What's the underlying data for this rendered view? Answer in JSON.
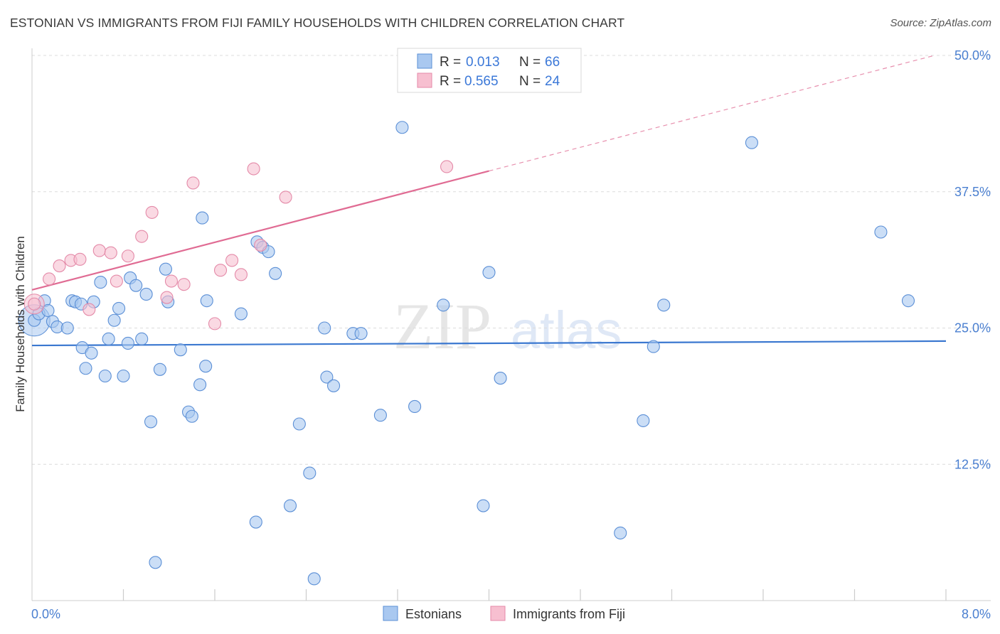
{
  "header": {
    "title": "ESTONIAN VS IMMIGRANTS FROM FIJI FAMILY HOUSEHOLDS WITH CHILDREN CORRELATION CHART",
    "source": "Source: ZipAtlas.com"
  },
  "watermark": {
    "zip": "ZIP",
    "atlas": "atlas"
  },
  "legend": {
    "r_label": "R =",
    "n_label": "N =",
    "rows": [
      {
        "r": "0.013",
        "n": "66"
      },
      {
        "r": "0.565",
        "n": "24"
      }
    ]
  },
  "colors": {
    "blue_fill": "#a9c8f0",
    "blue_stroke": "#5b8fd6",
    "blue_line": "#3b78d0",
    "pink_fill": "#f7bfd0",
    "pink_stroke": "#e48aa8",
    "pink_line": "#e06b93"
  },
  "chart_data": {
    "type": "scatter",
    "title": "ESTONIAN VS IMMIGRANTS FROM FIJI FAMILY HOUSEHOLDS WITH CHILDREN CORRELATION CHART",
    "xlabel": "",
    "ylabel": "Family Households with Children",
    "xlim": [
      0,
      8
    ],
    "ylim": [
      0,
      50
    ],
    "x_tick_labels": [
      "0.0%",
      "8.0%"
    ],
    "y_ticks": [
      12.5,
      25.0,
      37.5,
      50.0
    ],
    "y_tick_labels": [
      "12.5%",
      "25.0%",
      "37.5%",
      "50.0%"
    ],
    "series": [
      {
        "name": "Estonians",
        "r": 0.013,
        "n": 66,
        "trend": {
          "x": [
            0,
            8
          ],
          "y": [
            23.4,
            23.8
          ]
        },
        "points": [
          [
            0.02,
            25.7
          ],
          [
            0.06,
            26.3
          ],
          [
            0.11,
            27.5
          ],
          [
            0.14,
            26.6
          ],
          [
            0.18,
            25.6
          ],
          [
            0.22,
            25.1
          ],
          [
            0.31,
            25.0
          ],
          [
            0.35,
            27.5
          ],
          [
            0.38,
            27.4
          ],
          [
            0.43,
            27.2
          ],
          [
            0.44,
            23.2
          ],
          [
            0.47,
            21.3
          ],
          [
            0.52,
            22.7
          ],
          [
            0.54,
            27.4
          ],
          [
            0.6,
            29.2
          ],
          [
            0.64,
            20.6
          ],
          [
            0.67,
            24.0
          ],
          [
            0.72,
            25.7
          ],
          [
            0.76,
            26.8
          ],
          [
            0.8,
            20.6
          ],
          [
            0.84,
            23.6
          ],
          [
            0.86,
            29.6
          ],
          [
            0.91,
            28.9
          ],
          [
            0.96,
            24.0
          ],
          [
            1.0,
            28.1
          ],
          [
            1.04,
            16.4
          ],
          [
            1.08,
            3.5
          ],
          [
            1.12,
            21.2
          ],
          [
            1.17,
            30.4
          ],
          [
            1.19,
            27.4
          ],
          [
            1.3,
            23.0
          ],
          [
            1.37,
            17.3
          ],
          [
            1.4,
            16.9
          ],
          [
            1.47,
            19.8
          ],
          [
            1.49,
            35.1
          ],
          [
            1.52,
            21.5
          ],
          [
            1.53,
            27.5
          ],
          [
            1.83,
            26.3
          ],
          [
            1.96,
            7.2
          ],
          [
            1.97,
            32.9
          ],
          [
            2.02,
            32.4
          ],
          [
            2.07,
            32.0
          ],
          [
            2.13,
            30.0
          ],
          [
            2.26,
            8.7
          ],
          [
            2.34,
            16.2
          ],
          [
            2.43,
            11.7
          ],
          [
            2.47,
            2.0
          ],
          [
            2.56,
            25.0
          ],
          [
            2.58,
            20.5
          ],
          [
            2.64,
            19.7
          ],
          [
            2.81,
            24.5
          ],
          [
            2.88,
            24.5
          ],
          [
            3.05,
            17.0
          ],
          [
            3.24,
            43.4
          ],
          [
            3.35,
            17.8
          ],
          [
            3.6,
            27.1
          ],
          [
            3.95,
            8.7
          ],
          [
            4.0,
            30.1
          ],
          [
            4.1,
            20.4
          ],
          [
            5.15,
            6.2
          ],
          [
            5.35,
            16.5
          ],
          [
            5.44,
            23.3
          ],
          [
            5.53,
            27.1
          ],
          [
            6.3,
            42.0
          ],
          [
            7.43,
            33.8
          ],
          [
            7.67,
            27.5
          ]
        ]
      },
      {
        "name": "Immigrants from Fiji",
        "r": 0.565,
        "n": 24,
        "trend": {
          "x": [
            0,
            4.0
          ],
          "y": [
            28.5,
            39.4
          ]
        },
        "trend_dashed": {
          "x": [
            4.0,
            7.9
          ],
          "y": [
            39.4,
            50.0
          ]
        },
        "points": [
          [
            0.02,
            27.2
          ],
          [
            0.15,
            29.5
          ],
          [
            0.24,
            30.7
          ],
          [
            0.34,
            31.2
          ],
          [
            0.42,
            31.3
          ],
          [
            0.5,
            26.7
          ],
          [
            0.59,
            32.1
          ],
          [
            0.69,
            31.9
          ],
          [
            0.74,
            29.3
          ],
          [
            0.84,
            31.6
          ],
          [
            0.96,
            33.4
          ],
          [
            1.05,
            35.6
          ],
          [
            1.18,
            27.8
          ],
          [
            1.22,
            29.3
          ],
          [
            1.33,
            29.0
          ],
          [
            1.41,
            38.3
          ],
          [
            1.6,
            25.4
          ],
          [
            1.65,
            30.3
          ],
          [
            1.75,
            31.2
          ],
          [
            1.83,
            29.9
          ],
          [
            1.94,
            39.6
          ],
          [
            2.0,
            32.6
          ],
          [
            2.22,
            37.0
          ],
          [
            3.63,
            39.8
          ]
        ]
      }
    ]
  }
}
